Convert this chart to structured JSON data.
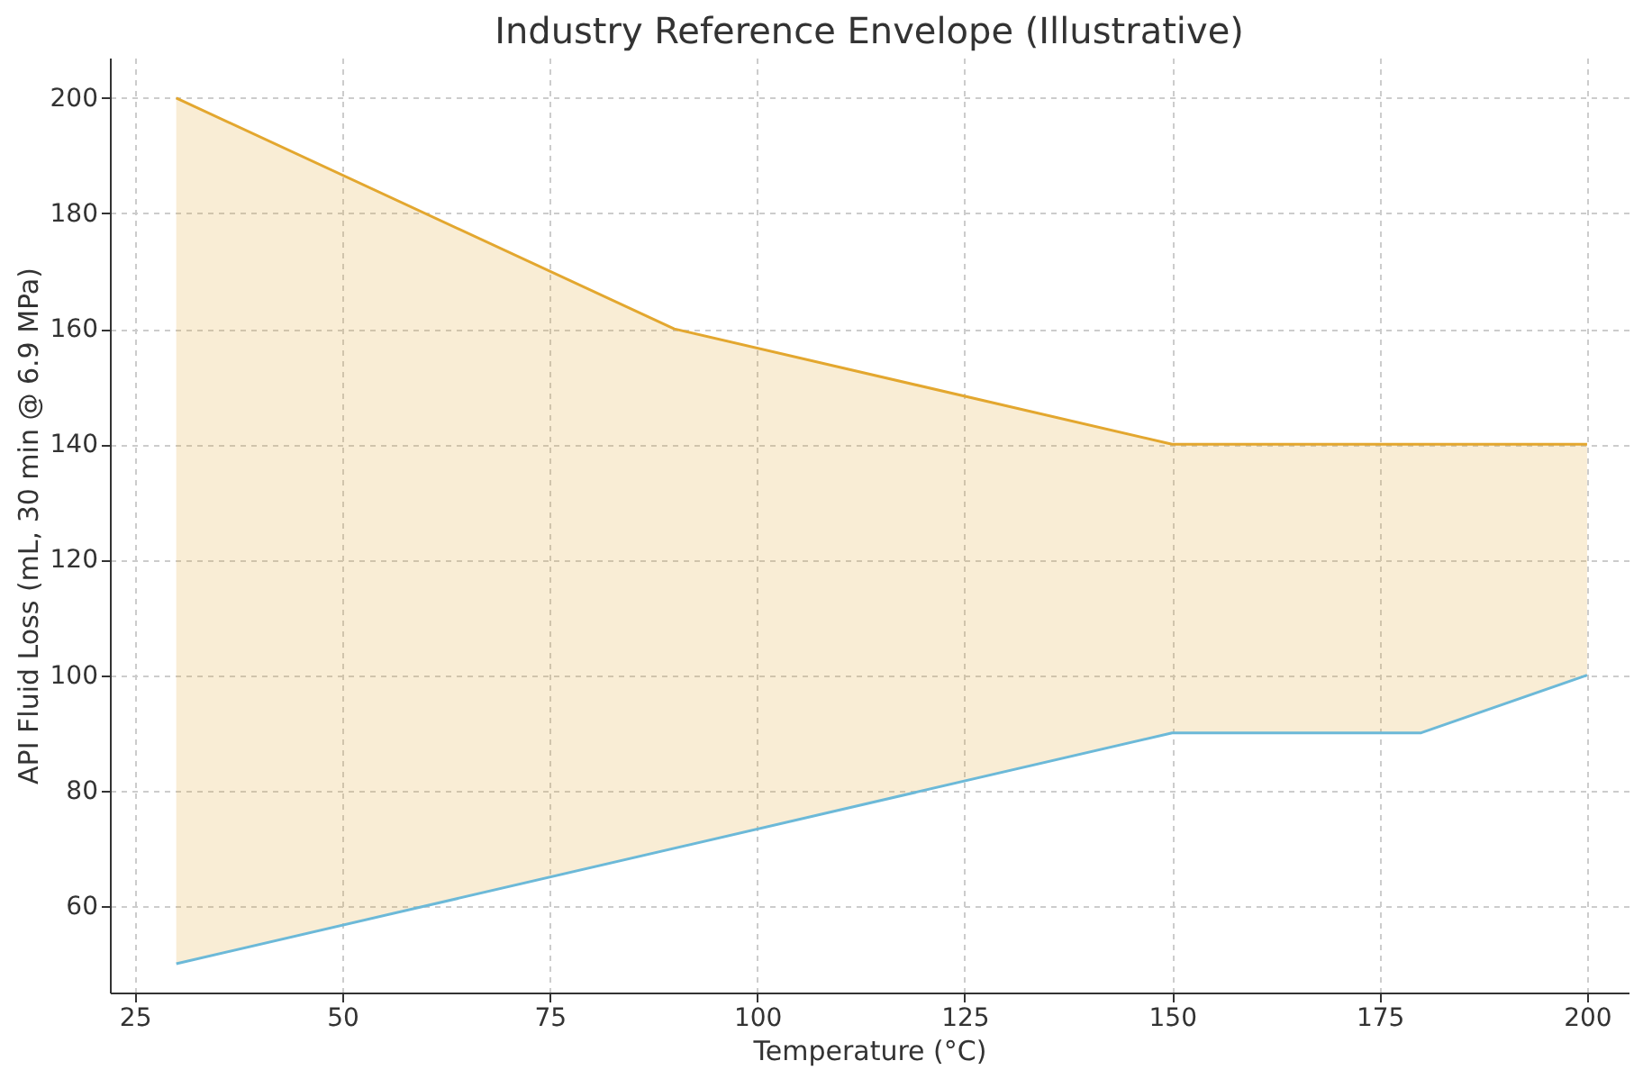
{
  "chart_data": {
    "type": "line",
    "title": "Industry Reference Envelope (Illustrative)",
    "xlabel": "Temperature (°C)",
    "ylabel": "API Fluid Loss (mL, 30 min @ 6.9 MPa)",
    "x": [
      30,
      90,
      150,
      180,
      200
    ],
    "series": [
      {
        "color": "#e3a72f",
        "values": [
          200,
          160,
          140,
          140,
          140
        ],
        "lower": [
          50,
          70,
          90,
          90,
          100
        ],
        "upper": [
          200,
          160,
          140,
          140,
          140
        ]
      },
      {
        "color": "#6cb9d8",
        "x": [
          30,
          150,
          180,
          200
        ],
        "values": [
          50,
          90,
          90,
          100
        ]
      }
    ],
    "xlim": [
      22,
      205
    ],
    "xticks": [
      25,
      50,
      75,
      100,
      125,
      150,
      175,
      200
    ],
    "ylim": [
      45,
      207
    ],
    "yticks": [
      60,
      80,
      100,
      120,
      140,
      160,
      180,
      200
    ],
    "grid": true,
    "line_style": "solid",
    "marker": "none"
  }
}
